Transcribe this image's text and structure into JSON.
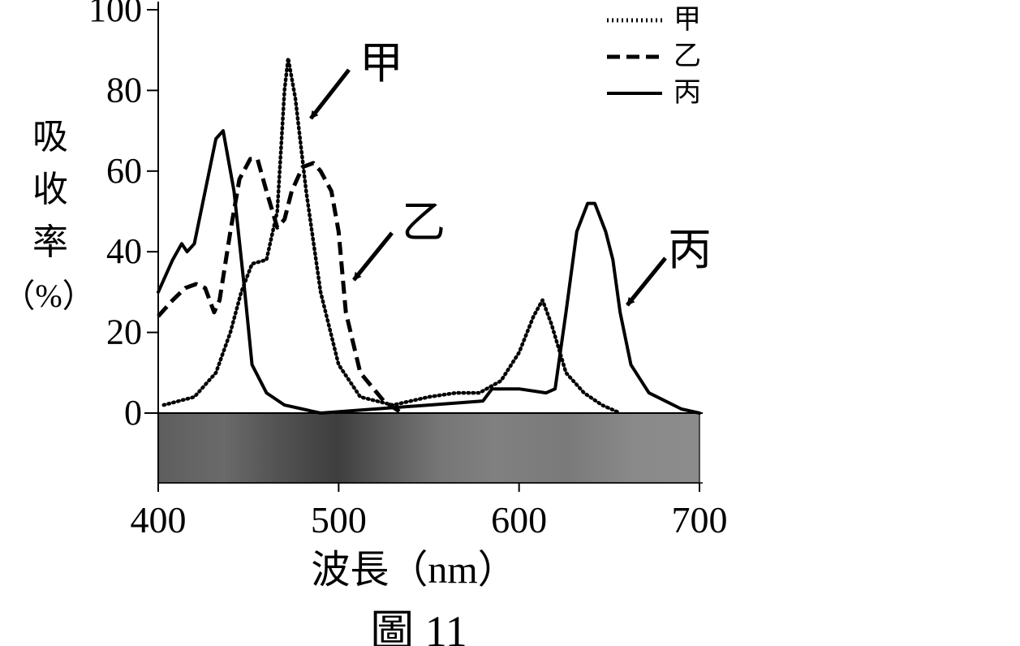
{
  "figure_caption": "圖 11",
  "chart_data": {
    "type": "line",
    "title": "",
    "xlabel": "波長（nm）",
    "ylabel_chars": [
      "吸",
      "收",
      "率",
      "（%）"
    ],
    "xlim": [
      400,
      700
    ],
    "ylim": [
      0,
      100
    ],
    "x_ticks": [
      400,
      500,
      600,
      700
    ],
    "y_ticks": [
      0,
      20,
      40,
      60,
      80,
      100
    ],
    "grid": false,
    "legend_position": "top-right",
    "colors": {
      "line": "#000000",
      "spectrum_dark": "#3e3e3e",
      "spectrum_light": "#8c8c8c"
    },
    "series": [
      {
        "name": "甲",
        "style": "dotted",
        "points": [
          [
            403,
            2
          ],
          [
            420,
            4
          ],
          [
            432,
            10
          ],
          [
            440,
            20
          ],
          [
            446,
            30
          ],
          [
            452,
            37
          ],
          [
            460,
            38
          ],
          [
            466,
            50
          ],
          [
            470,
            80
          ],
          [
            472,
            88
          ],
          [
            476,
            78
          ],
          [
            482,
            55
          ],
          [
            490,
            30
          ],
          [
            500,
            12
          ],
          [
            512,
            4
          ],
          [
            530,
            2
          ],
          [
            550,
            4
          ],
          [
            565,
            5
          ],
          [
            578,
            5
          ],
          [
            590,
            8
          ],
          [
            600,
            15
          ],
          [
            608,
            24
          ],
          [
            613,
            28
          ],
          [
            618,
            22
          ],
          [
            626,
            10
          ],
          [
            636,
            5
          ],
          [
            646,
            2
          ],
          [
            656,
            0
          ]
        ]
      },
      {
        "name": "乙",
        "style": "dashed",
        "points": [
          [
            400,
            24
          ],
          [
            408,
            28
          ],
          [
            415,
            31
          ],
          [
            421,
            32
          ],
          [
            426,
            31
          ],
          [
            431,
            25
          ],
          [
            434,
            28
          ],
          [
            440,
            45
          ],
          [
            445,
            58
          ],
          [
            451,
            63
          ],
          [
            455,
            63
          ],
          [
            460,
            55
          ],
          [
            466,
            46
          ],
          [
            470,
            48
          ],
          [
            474,
            55
          ],
          [
            480,
            61
          ],
          [
            486,
            62
          ],
          [
            490,
            60
          ],
          [
            496,
            55
          ],
          [
            500,
            45
          ],
          [
            504,
            25
          ],
          [
            512,
            10
          ],
          [
            525,
            3
          ],
          [
            535,
            0
          ]
        ]
      },
      {
        "name": "丙",
        "style": "solid",
        "points": [
          [
            400,
            30
          ],
          [
            408,
            38
          ],
          [
            413,
            42
          ],
          [
            416,
            40
          ],
          [
            420,
            42
          ],
          [
            426,
            55
          ],
          [
            432,
            68
          ],
          [
            436,
            70
          ],
          [
            442,
            55
          ],
          [
            448,
            30
          ],
          [
            452,
            12
          ],
          [
            460,
            5
          ],
          [
            470,
            2
          ],
          [
            490,
            0
          ],
          [
            520,
            1
          ],
          [
            550,
            2
          ],
          [
            580,
            3
          ],
          [
            585,
            6
          ],
          [
            600,
            6
          ],
          [
            615,
            5
          ],
          [
            620,
            6
          ],
          [
            626,
            25
          ],
          [
            632,
            45
          ],
          [
            638,
            52
          ],
          [
            642,
            52
          ],
          [
            648,
            45
          ],
          [
            652,
            38
          ],
          [
            656,
            25
          ],
          [
            662,
            12
          ],
          [
            672,
            5
          ],
          [
            690,
            1
          ],
          [
            700,
            0
          ]
        ]
      }
    ]
  }
}
